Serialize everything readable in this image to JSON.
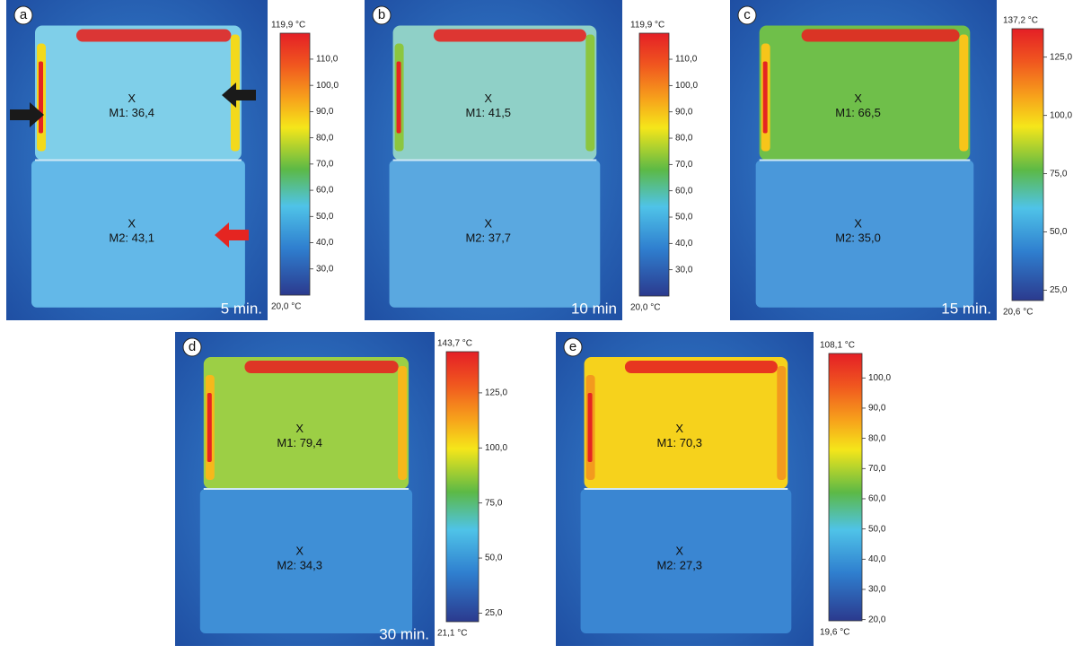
{
  "panels": [
    {
      "letter": "a",
      "time": "5 min.",
      "scale_max": "119,9 °C",
      "scale_min": "20,0 °C",
      "ticks": [
        "110,0",
        "100,0",
        "90,0",
        "80,0",
        "70,0",
        "60,0",
        "50,0",
        "40,0",
        "30,0"
      ],
      "markers": [
        {
          "symbol": "X",
          "label": "M1: 36,4"
        },
        {
          "symbol": "X",
          "label": "M2: 43,1"
        }
      ]
    },
    {
      "letter": "b",
      "time": "10 min",
      "scale_max": "119,9 °C",
      "scale_min": "20,0 °C",
      "ticks": [
        "110,0",
        "100,0",
        "90,0",
        "80,0",
        "70,0",
        "60,0",
        "50,0",
        "40,0",
        "30,0"
      ],
      "markers": [
        {
          "symbol": "X",
          "label": "M1: 41,5"
        },
        {
          "symbol": "X",
          "label": "M2: 37,7"
        }
      ]
    },
    {
      "letter": "c",
      "time": "15 min.",
      "scale_max": "137,2 °C",
      "scale_min": "20,6 °C",
      "ticks": [
        "125,0",
        "100,0",
        "75,0",
        "50,0",
        "25,0"
      ],
      "markers": [
        {
          "symbol": "X",
          "label": "M1: 66,5"
        },
        {
          "symbol": "X",
          "label": "M2: 35,0"
        }
      ]
    },
    {
      "letter": "d",
      "time": "30 min.",
      "scale_max": "143,7 °C",
      "scale_min": "21,1 °C",
      "ticks": [
        "125,0",
        "100,0",
        "75,0",
        "50,0",
        "25,0"
      ],
      "markers": [
        {
          "symbol": "X",
          "label": "M1: 79,4"
        },
        {
          "symbol": "X",
          "label": "M2: 34,3"
        }
      ]
    },
    {
      "letter": "e",
      "time": "",
      "scale_max": "108,1 °C",
      "scale_min": "19,6 °C",
      "ticks": [
        "100,0",
        "90,0",
        "80,0",
        "70,0",
        "60,0",
        "50,0",
        "40,0",
        "30,0",
        "20,0"
      ],
      "markers": [
        {
          "symbol": "X",
          "label": "M1: 70,3"
        },
        {
          "symbol": "X",
          "label": "M2: 27,3"
        }
      ]
    }
  ]
}
